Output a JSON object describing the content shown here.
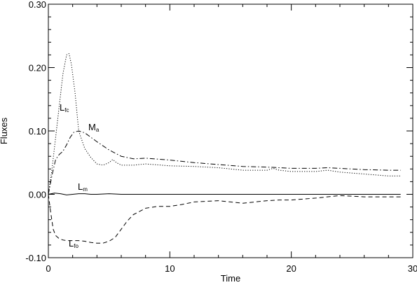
{
  "chart_data": {
    "type": "line",
    "title": "",
    "xlabel": "Time",
    "ylabel": "Fluxes",
    "xlim": [
      0,
      30
    ],
    "ylim": [
      -0.1,
      0.3
    ],
    "xticks": [
      0,
      10,
      20,
      30
    ],
    "yticks": [
      -0.1,
      0.0,
      0.1,
      0.2,
      0.3
    ],
    "xtick_labels": [
      "0",
      "10",
      "20",
      "30"
    ],
    "ytick_labels": [
      "-0.10",
      "0.00",
      "0.10",
      "0.20",
      "0.30"
    ],
    "grid": false,
    "legend": "none",
    "series": [
      {
        "name": "L_fc",
        "label_main": "L",
        "label_sub": "fc",
        "style": "dotted",
        "x": [
          0.0,
          0.3,
          0.6,
          0.9,
          1.2,
          1.5,
          1.7,
          1.9,
          2.2,
          2.5,
          3.0,
          3.5,
          4.0,
          4.5,
          5.0,
          5.3,
          5.6,
          6.0,
          7.0,
          8.0,
          10.0,
          12.0,
          14.0,
          16.0,
          18.0,
          18.5,
          19.0,
          20.0,
          22.0,
          23.0,
          24.0,
          26.0,
          28.0,
          29.0
        ],
        "y": [
          0.0,
          0.04,
          0.09,
          0.14,
          0.19,
          0.22,
          0.222,
          0.205,
          0.16,
          0.1,
          0.072,
          0.058,
          0.048,
          0.046,
          0.05,
          0.055,
          0.05,
          0.046,
          0.046,
          0.048,
          0.045,
          0.044,
          0.042,
          0.038,
          0.038,
          0.041,
          0.038,
          0.036,
          0.036,
          0.038,
          0.035,
          0.032,
          0.029,
          0.029
        ]
      },
      {
        "name": "M_a",
        "label_main": "M",
        "label_sub": "a",
        "style": "dash-dot",
        "x": [
          0.0,
          0.3,
          0.6,
          0.9,
          1.2,
          1.5,
          1.8,
          2.1,
          2.5,
          3.0,
          3.5,
          4.0,
          5.0,
          6.0,
          7.0,
          8.0,
          10.0,
          12.0,
          14.0,
          16.0,
          18.0,
          20.0,
          22.0,
          23.0,
          24.0,
          26.0,
          28.0,
          29.0
        ],
        "y": [
          0.0,
          0.03,
          0.055,
          0.063,
          0.068,
          0.078,
          0.09,
          0.098,
          0.1,
          0.097,
          0.09,
          0.083,
          0.07,
          0.06,
          0.056,
          0.057,
          0.054,
          0.05,
          0.047,
          0.044,
          0.043,
          0.041,
          0.041,
          0.042,
          0.041,
          0.039,
          0.038,
          0.038
        ]
      },
      {
        "name": "L_m",
        "label_main": "L",
        "label_sub": "m",
        "style": "solid",
        "x": [
          0.0,
          0.5,
          1.0,
          1.5,
          2.0,
          2.5,
          3.0,
          3.5,
          4.0,
          5.0,
          6.0,
          8.0,
          10.0,
          15.0,
          20.0,
          25.0,
          29.0
        ],
        "y": [
          0.0,
          0.002,
          0.001,
          -0.001,
          0.0,
          0.001,
          0.001,
          0.0,
          0.0,
          0.001,
          0.0,
          0.0,
          0.0,
          0.0,
          0.0,
          0.0,
          0.0
        ]
      },
      {
        "name": "L_fo",
        "label_main": "L",
        "label_sub": "fo",
        "style": "dashed",
        "x": [
          0.0,
          0.2,
          0.4,
          0.6,
          0.9,
          1.2,
          1.5,
          2.0,
          2.5,
          3.0,
          3.5,
          4.0,
          4.5,
          5.0,
          5.5,
          6.0,
          6.5,
          7.0,
          8.0,
          9.0,
          10.0,
          11.0,
          12.0,
          13.0,
          14.0,
          15.0,
          16.0,
          17.0,
          18.0,
          19.0,
          20.0,
          22.0,
          24.0,
          26.0,
          28.0,
          29.0
        ],
        "y": [
          0.0,
          -0.03,
          -0.055,
          -0.065,
          -0.07,
          -0.072,
          -0.073,
          -0.073,
          -0.073,
          -0.074,
          -0.076,
          -0.077,
          -0.077,
          -0.074,
          -0.068,
          -0.055,
          -0.042,
          -0.032,
          -0.022,
          -0.019,
          -0.019,
          -0.016,
          -0.012,
          -0.011,
          -0.01,
          -0.012,
          -0.014,
          -0.012,
          -0.01,
          -0.009,
          -0.009,
          -0.006,
          -0.002,
          -0.004,
          -0.004,
          -0.004
        ]
      }
    ]
  }
}
